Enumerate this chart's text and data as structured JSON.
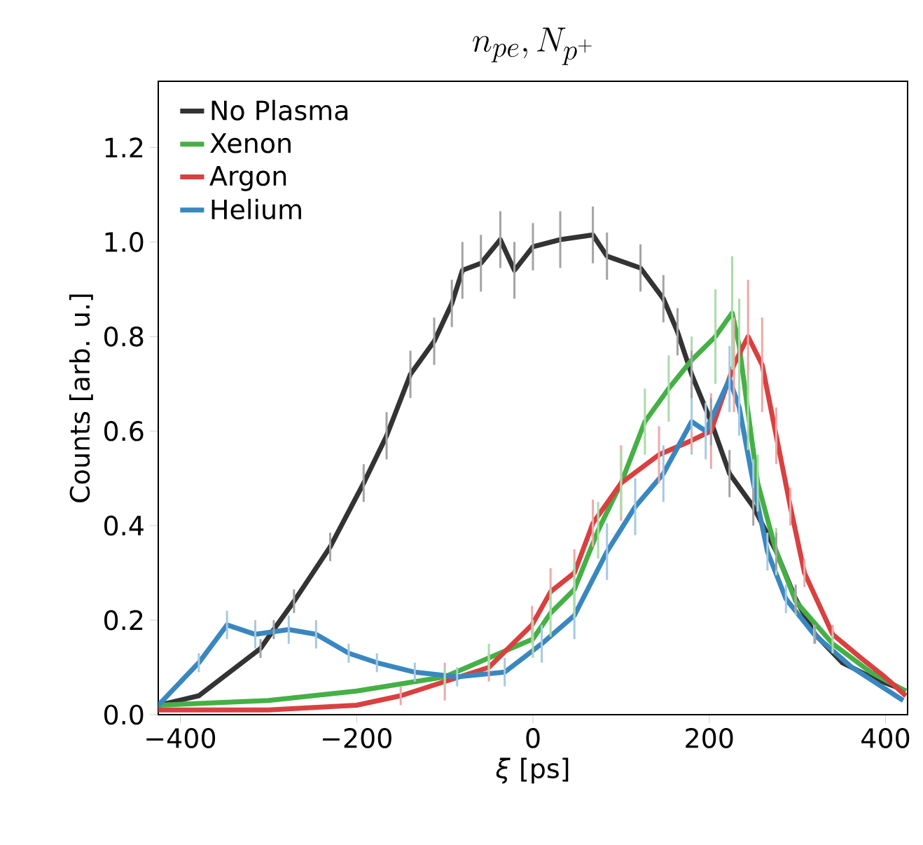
{
  "chart_data": {
    "type": "line",
    "title": "n_{pe}, N_{p^+}",
    "xlabel": "*ξ* [ps]",
    "ylabel": "Counts [arb. u.]",
    "xlim": [
      -425,
      425
    ],
    "ylim": [
      0,
      1.34
    ],
    "xticks": [
      {
        "value": -400,
        "label": "−400"
      },
      {
        "value": -200,
        "label": "−200"
      },
      0,
      200,
      400
    ],
    "yticks": [
      {
        "value": 0,
        "label": "0.0"
      },
      0.2,
      0.4,
      0.6,
      0.8,
      {
        "value": 1,
        "label": "1.0"
      },
      1.2
    ],
    "legend": "top left",
    "series": [
      {
        "name": "No Plasma",
        "color": "#333333",
        "x": [
          -425,
          -379,
          -309,
          -294,
          -271,
          -230,
          -192,
          -166,
          -139,
          -112,
          -92,
          -80,
          -59,
          -37,
          -21,
          0,
          31,
          68,
          84,
          122,
          148,
          164,
          180,
          202,
          223,
          250,
          276,
          298,
          320,
          351,
          383,
          423
        ],
        "values": [
          0.02,
          0.04,
          0.14,
          0.18,
          0.24,
          0.355,
          0.49,
          0.59,
          0.72,
          0.79,
          0.87,
          0.94,
          0.955,
          1.005,
          0.94,
          0.99,
          1.005,
          1.015,
          0.97,
          0.945,
          0.88,
          0.81,
          0.72,
          0.62,
          0.51,
          0.44,
          0.345,
          0.245,
          0.17,
          0.11,
          0.08,
          0.05
        ],
        "errors": [
          null,
          null,
          0.02,
          0.02,
          0.025,
          0.03,
          0.04,
          0.05,
          0.05,
          0.05,
          0.05,
          0.06,
          0.06,
          0.06,
          0.06,
          0.05,
          0.06,
          0.06,
          0.05,
          0.05,
          0.05,
          0.05,
          0.05,
          0.05,
          0.05,
          0.04,
          0.04,
          0.03,
          0.02,
          null,
          null,
          null
        ]
      },
      {
        "name": "Xenon",
        "color": "#45b045",
        "x": [
          -425,
          -300,
          -200,
          -100,
          -50,
          0,
          20,
          47,
          74,
          100,
          127,
          154,
          180,
          207,
          226,
          234,
          244,
          255,
          276,
          298,
          340,
          383,
          423
        ],
        "values": [
          0.02,
          0.03,
          0.05,
          0.08,
          0.12,
          0.16,
          0.215,
          0.265,
          0.39,
          0.49,
          0.62,
          0.69,
          0.75,
          0.8,
          0.85,
          0.78,
          0.64,
          0.49,
          0.345,
          0.24,
          0.15,
          0.09,
          0.05
        ],
        "errors": [
          null,
          null,
          null,
          0.02,
          0.03,
          0.04,
          0.05,
          0.06,
          0.06,
          0.07,
          0.07,
          0.07,
          0.05,
          0.1,
          0.12,
          0.1,
          0.08,
          0.06,
          0.05,
          0.03,
          0.02,
          null,
          null
        ]
      },
      {
        "name": "Argon",
        "color": "#d94040",
        "x": [
          -425,
          -300,
          -200,
          -150,
          -100,
          -50,
          -1,
          20,
          47,
          68,
          100,
          143,
          180,
          202,
          228,
          244,
          260,
          276,
          292,
          308,
          340,
          372,
          399,
          423
        ],
        "values": [
          0.01,
          0.01,
          0.02,
          0.04,
          0.07,
          0.1,
          0.19,
          0.26,
          0.3,
          0.405,
          0.49,
          0.55,
          0.58,
          0.6,
          0.74,
          0.8,
          0.74,
          0.59,
          0.44,
          0.3,
          0.17,
          0.12,
          0.08,
          0.04
        ],
        "errors": [
          null,
          null,
          null,
          0.02,
          0.04,
          0.03,
          0.04,
          0.05,
          0.05,
          0.05,
          0.08,
          0.06,
          0.02,
          0.08,
          0.1,
          0.12,
          0.1,
          0.06,
          0.04,
          0.03,
          0.02,
          null,
          null,
          null
        ]
      },
      {
        "name": "Helium",
        "color": "#3a87c0",
        "x": [
          -425,
          -379,
          -347,
          -315,
          -277,
          -246,
          -209,
          -177,
          -134,
          -86,
          -32,
          10,
          47,
          84,
          116,
          148,
          180,
          196,
          223,
          234,
          250,
          266,
          287,
          319,
          362,
          420
        ],
        "values": [
          0.02,
          0.11,
          0.19,
          0.17,
          0.18,
          0.17,
          0.13,
          0.11,
          0.09,
          0.08,
          0.09,
          0.15,
          0.21,
          0.345,
          0.44,
          0.51,
          0.62,
          0.6,
          0.71,
          0.65,
          0.49,
          0.345,
          0.245,
          0.17,
          0.1,
          0.03
        ],
        "errors": [
          null,
          0.02,
          0.03,
          0.03,
          0.03,
          0.03,
          0.02,
          0.02,
          0.02,
          0.02,
          0.03,
          0.04,
          0.05,
          0.06,
          0.06,
          0.06,
          0.07,
          0.06,
          0.07,
          0.06,
          0.05,
          0.04,
          0.03,
          0.02,
          null,
          null
        ]
      }
    ]
  }
}
